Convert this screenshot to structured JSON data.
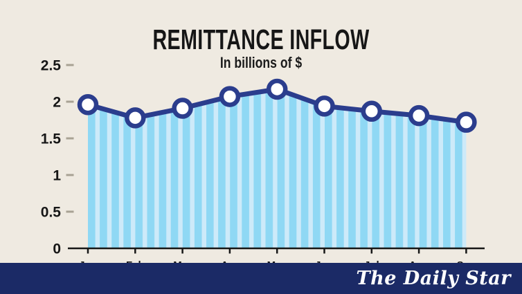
{
  "chart_data": {
    "type": "line",
    "title": "REMITTANCE INFLOW",
    "subtitle": "In billions of $",
    "categories": [
      "Jan",
      "Feb",
      "Mar",
      "Apr",
      "May",
      "Jun",
      "Jul",
      "Aug",
      "Sep"
    ],
    "values": [
      1.96,
      1.78,
      1.91,
      2.07,
      2.17,
      1.94,
      1.87,
      1.81,
      1.72
    ],
    "ylim": [
      0,
      2.5
    ],
    "yticks": [
      0,
      0.5,
      1,
      1.5,
      2,
      2.5
    ],
    "ytick_labels": [
      "0",
      "0.5",
      "1",
      "1.5",
      "2",
      "2.5"
    ],
    "grid": false,
    "legend": "none",
    "marker": "circle-outline",
    "area_fill": "vertical-stripes",
    "colors": {
      "line": "#2b3d8d",
      "marker_fill": "#ffffff",
      "area_stripe_dark": "#8fd8f4",
      "area_stripe_light": "#cdeaf9",
      "axis": "#161616",
      "ytick_dash": "#a8a294",
      "text": "#161616"
    }
  },
  "footer": {
    "logo_text": "The Daily Star",
    "background": "#1b2a66"
  },
  "page": {
    "background": "#efeae1"
  }
}
